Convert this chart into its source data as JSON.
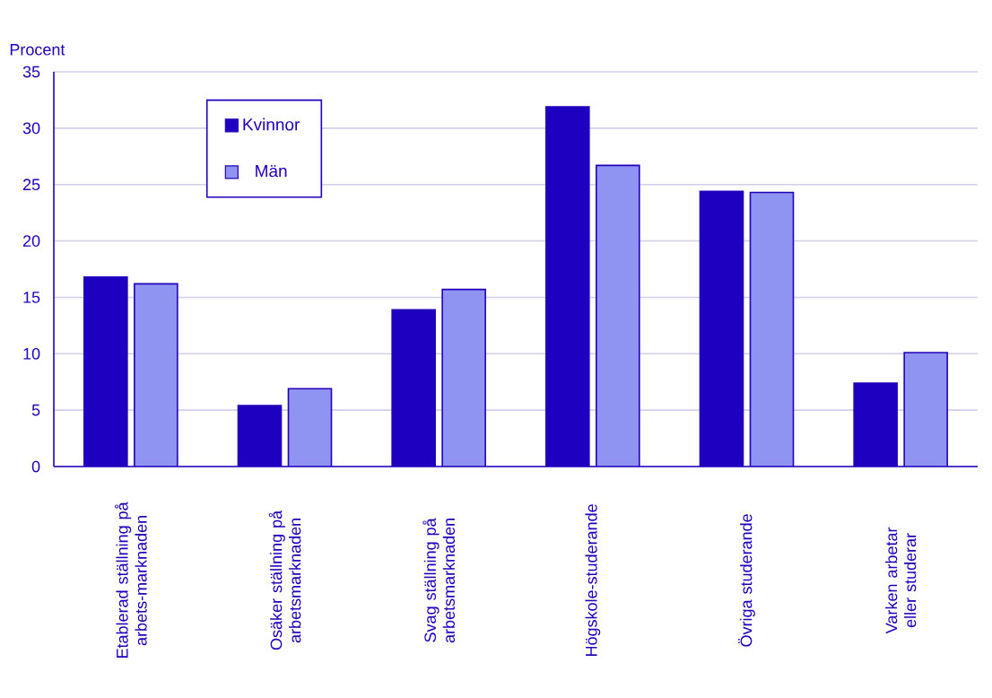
{
  "chart_data": {
    "type": "bar",
    "ylabel": "Procent",
    "categories": [
      "Etablerad ställning på arbets-marknaden",
      "Osäker ställning på arbetsmarknaden",
      "Svag ställning på arbetsmarknaden",
      "Högskole-studerande",
      "Övriga studerande",
      "Varken arbetar eller studerar"
    ],
    "series": [
      {
        "name": "Kvinnor",
        "color": "#1e00c0",
        "values": [
          16.8,
          5.4,
          13.9,
          31.9,
          24.4,
          7.4
        ]
      },
      {
        "name": "Män",
        "color": "#8f94f2",
        "values": [
          16.2,
          6.9,
          15.7,
          26.7,
          24.3,
          10.1
        ]
      }
    ],
    "ylim": [
      0,
      35
    ],
    "yticks": [
      0,
      5,
      10,
      15,
      20,
      25,
      30,
      35
    ],
    "grid": "y",
    "legend": "top left"
  }
}
